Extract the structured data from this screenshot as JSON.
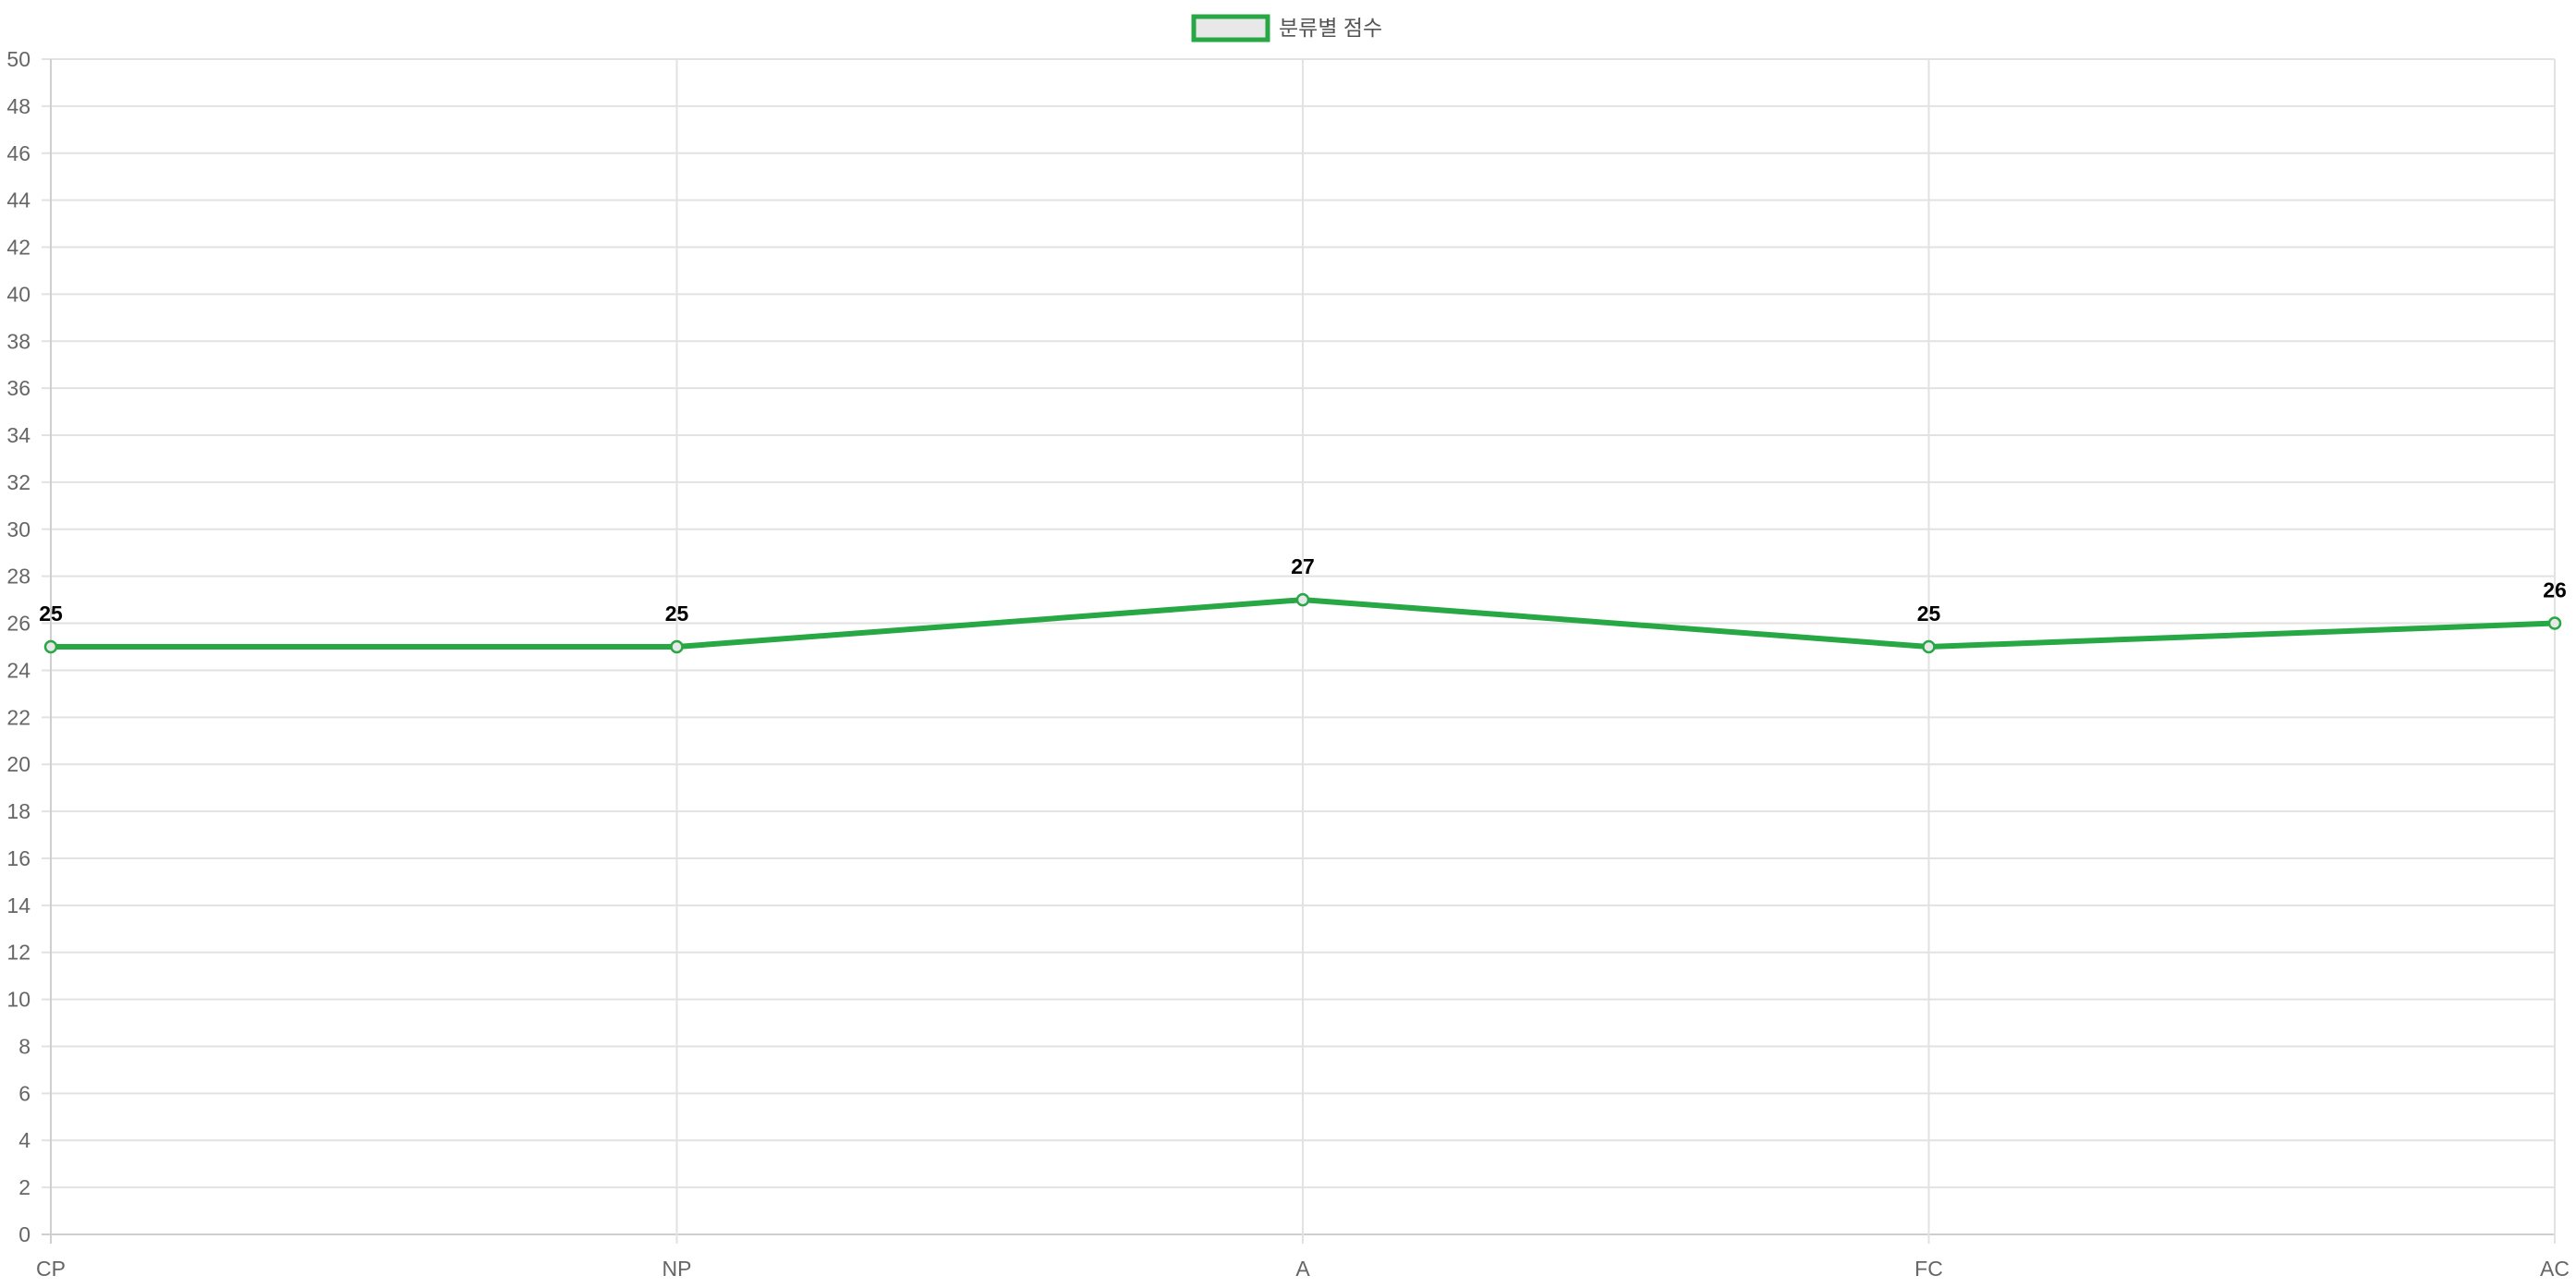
{
  "chart_data": {
    "type": "line",
    "categories": [
      "CP",
      "NP",
      "A",
      "FC",
      "AC"
    ],
    "series": [
      {
        "name": "분류별 점수",
        "values": [
          25,
          25,
          27,
          25,
          26
        ],
        "color": "#28a745",
        "fill": "#e8e8e8"
      }
    ],
    "ylim": [
      0,
      50
    ],
    "ytick_step": 2,
    "grid": true,
    "legend": "top-center",
    "data_labels": true
  }
}
